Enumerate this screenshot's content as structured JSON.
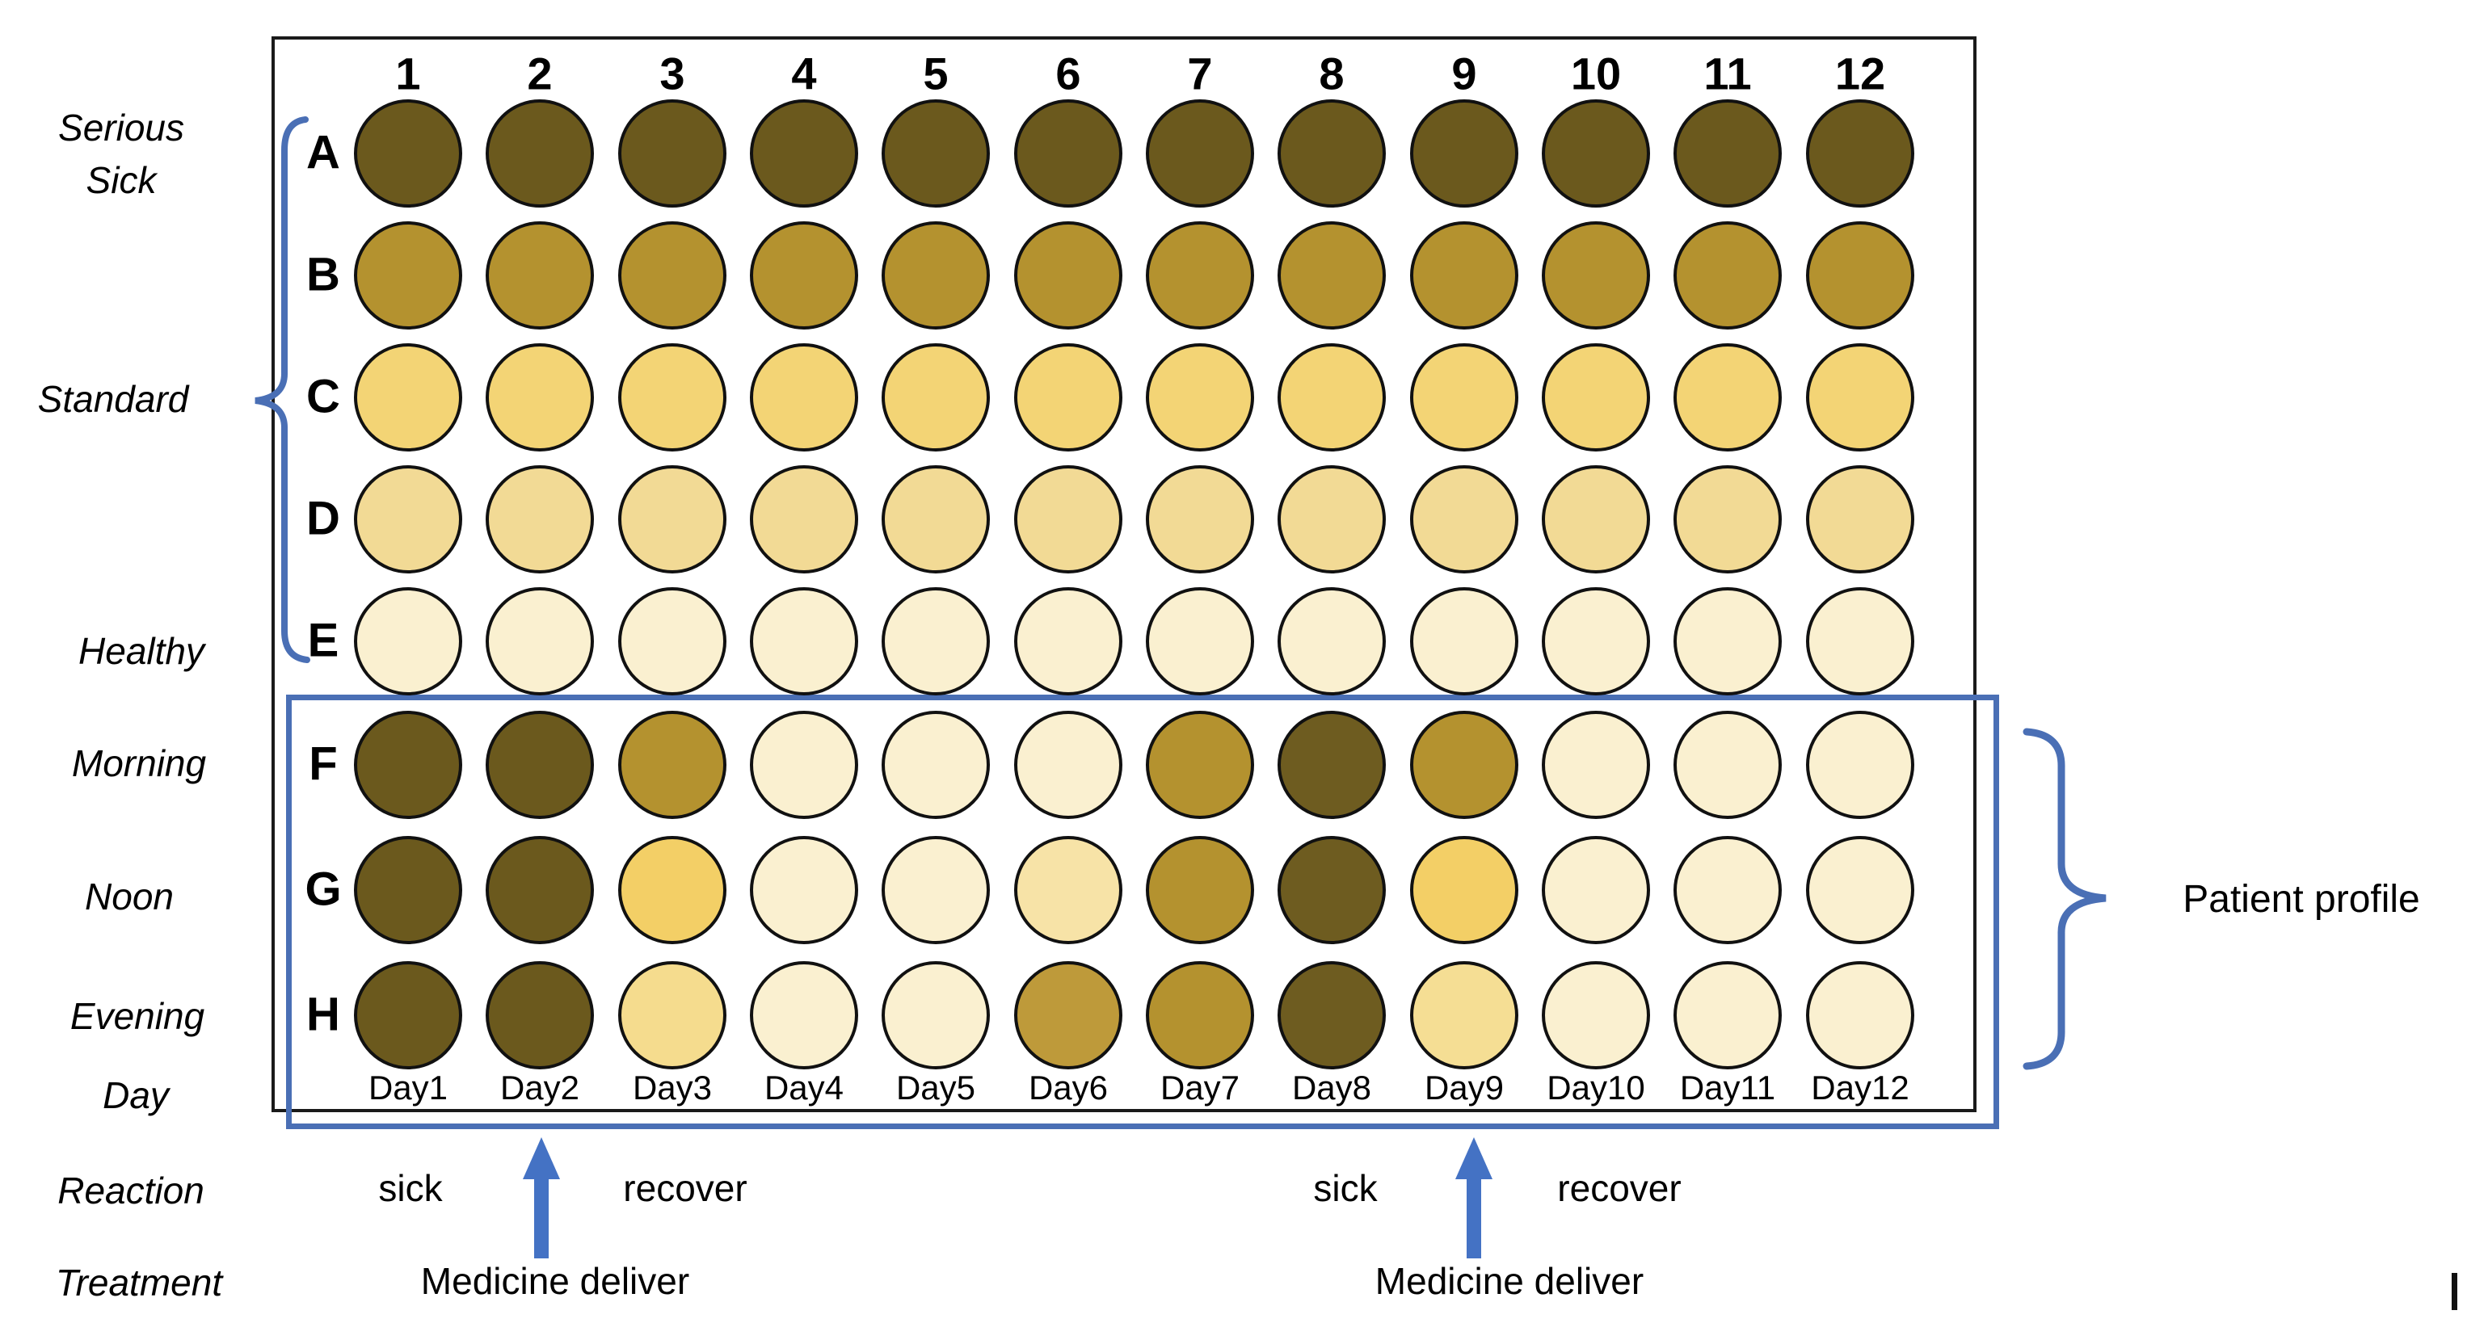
{
  "plate": {
    "column_numbers": [
      "1",
      "2",
      "3",
      "4",
      "5",
      "6",
      "7",
      "8",
      "9",
      "10",
      "11",
      "12"
    ],
    "row_letters": [
      "A",
      "B",
      "C",
      "D",
      "E",
      "F",
      "G",
      "H"
    ],
    "day_labels": [
      "Day1",
      "Day2",
      "Day3",
      "Day4",
      "Day5",
      "Day6",
      "Day7",
      "Day8",
      "Day9",
      "Day10",
      "Day11",
      "Day12"
    ],
    "wells": {
      "A": [
        "#6B591D",
        "#6B591D",
        "#6B591D",
        "#6B591D",
        "#6B591D",
        "#6B591D",
        "#6B591D",
        "#6B591D",
        "#6B591D",
        "#6B591D",
        "#6B591D",
        "#6B591D"
      ],
      "B": [
        "#B4922F",
        "#B4922F",
        "#B4922F",
        "#B4922F",
        "#B4922F",
        "#B4922F",
        "#B4922F",
        "#B4922F",
        "#B4922F",
        "#B4922F",
        "#B4922F",
        "#B4922F"
      ],
      "C": [
        "#F3D475",
        "#F3D475",
        "#F3D475",
        "#F3D475",
        "#F3D475",
        "#F3D475",
        "#F3D475",
        "#F3D475",
        "#F3D475",
        "#F3D475",
        "#F3D475",
        "#F3D475"
      ],
      "D": [
        "#F2DA95",
        "#F2DA95",
        "#F2DA95",
        "#F2DA95",
        "#F2DA95",
        "#F2DA95",
        "#F2DA95",
        "#F2DA95",
        "#F2DA95",
        "#F2DA95",
        "#F2DA95",
        "#F2DA95"
      ],
      "E": [
        "#FAF0D0",
        "#FAF0D0",
        "#FAF0D0",
        "#FAF0D0",
        "#FAF0D0",
        "#FAF0D0",
        "#FAF0D0",
        "#FAF0D0",
        "#FAF0D0",
        "#FAF0D0",
        "#FAF0D0",
        "#FAF0D0"
      ],
      "F": [
        "#6B591D",
        "#6B591D",
        "#B4922F",
        "#FAF0D0",
        "#FAF0D0",
        "#FAF0D0",
        "#B4922F",
        "#6E5C20",
        "#B4922F",
        "#FAF0D0",
        "#FAF0D0",
        "#FAF0D0"
      ],
      "G": [
        "#6B591D",
        "#6B591D",
        "#F3CF66",
        "#FAF0D0",
        "#FAF0D0",
        "#F7E3A7",
        "#B4922F",
        "#6E5C20",
        "#F3CF66",
        "#FAF0D0",
        "#FAF0D0",
        "#FAF0D0"
      ],
      "H": [
        "#6B591D",
        "#6B591D",
        "#F5DC8E",
        "#FAF0D0",
        "#FAF0D0",
        "#BE9A3A",
        "#B4922F",
        "#6E5C20",
        "#F5DE94",
        "#FAF0D0",
        "#FAF0D0",
        "#FAF0D0"
      ]
    }
  },
  "left_labels": {
    "serious_sick": [
      "Serious",
      "Sick"
    ],
    "standard": "Standard",
    "healthy": "Healthy",
    "morning": "Morning",
    "noon": "Noon",
    "evening": "Evening",
    "day": "Day",
    "reaction": "Reaction",
    "treatment": "Treatment"
  },
  "annotations": {
    "patient_profile": "Patient profile",
    "episode1": {
      "sick": "sick",
      "recover": "recover",
      "treatment": "Medicine deliver"
    },
    "episode2": {
      "sick": "sick",
      "recover": "recover",
      "treatment": "Medicine deliver"
    }
  },
  "colors": {
    "accent_blue": "#4472C4",
    "frame_blue": "#4A6FB5",
    "plate_border": "#1A1A1A",
    "well_outline": "#111111",
    "shade_serious": "#6B591D",
    "shade_high": "#B4922F",
    "shade_medium": "#F3D475",
    "shade_low": "#F2DA95",
    "shade_healthy": "#FAF0D0"
  }
}
